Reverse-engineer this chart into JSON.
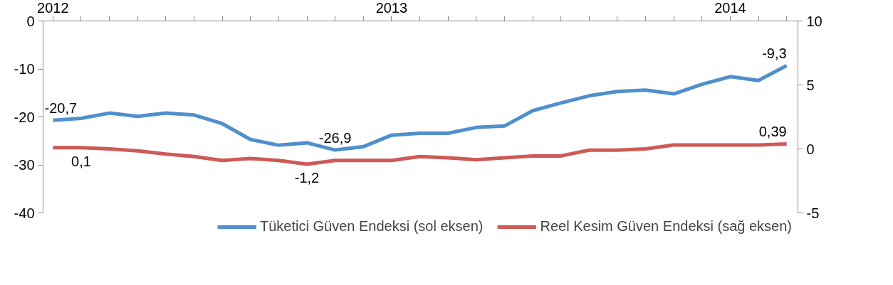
{
  "chart_data": {
    "type": "line",
    "categories": [
      "2012",
      null,
      null,
      null,
      null,
      null,
      null,
      null,
      null,
      null,
      null,
      null,
      "2013",
      null,
      null,
      null,
      null,
      null,
      null,
      null,
      null,
      null,
      null,
      null,
      "2014",
      null,
      null
    ],
    "series": [
      {
        "name": "Tüketici Güven Endeksi (sol eksen)",
        "color": "#4f8fcd",
        "values": [
          -20.7,
          -20.3,
          -19.2,
          -19.9,
          -19.2,
          -19.6,
          -21.4,
          -24.7,
          -25.9,
          -25.4,
          -26.9,
          -26.2,
          -23.8,
          -23.4,
          -23.4,
          -22.2,
          -21.9,
          -18.7,
          -17.1,
          -15.6,
          -14.7,
          -14.4,
          -15.2,
          -13.2,
          -11.6,
          -12.4,
          -9.3
        ],
        "value_labels": [
          "-20,7",
          null,
          null,
          null,
          null,
          null,
          null,
          null,
          null,
          null,
          "-26,9",
          null,
          null,
          null,
          null,
          null,
          null,
          null,
          null,
          null,
          null,
          null,
          null,
          null,
          null,
          null,
          "-9,3"
        ]
      },
      {
        "name": "Reel Kesim Güven Endeksi (sağ eksen)",
        "color": "#cd5a55",
        "axis": "y2",
        "values": [
          0.1,
          0.1,
          0.0,
          -0.15,
          -0.4,
          -0.6,
          -0.9,
          -0.75,
          -0.9,
          -1.2,
          -0.9,
          -0.9,
          -0.9,
          -0.6,
          -0.7,
          -0.85,
          -0.7,
          -0.55,
          -0.55,
          -0.1,
          -0.1,
          0.0,
          0.3,
          0.3,
          0.3,
          0.3,
          0.39
        ],
        "value_labels": [
          null,
          "0,1",
          null,
          null,
          null,
          null,
          null,
          null,
          null,
          "-1,2",
          null,
          null,
          null,
          null,
          null,
          null,
          null,
          null,
          null,
          null,
          null,
          null,
          null,
          null,
          null,
          null,
          "0,39"
        ]
      }
    ],
    "ylim": [
      -40,
      0
    ],
    "yticks": [
      -40,
      -30,
      -20,
      -10,
      0
    ],
    "y2lim": [
      -5,
      10
    ],
    "y2ticks": [
      -5,
      0,
      5,
      10
    ],
    "legend": "bottom",
    "grid": false,
    "marker": "none",
    "line_style": "solid"
  }
}
